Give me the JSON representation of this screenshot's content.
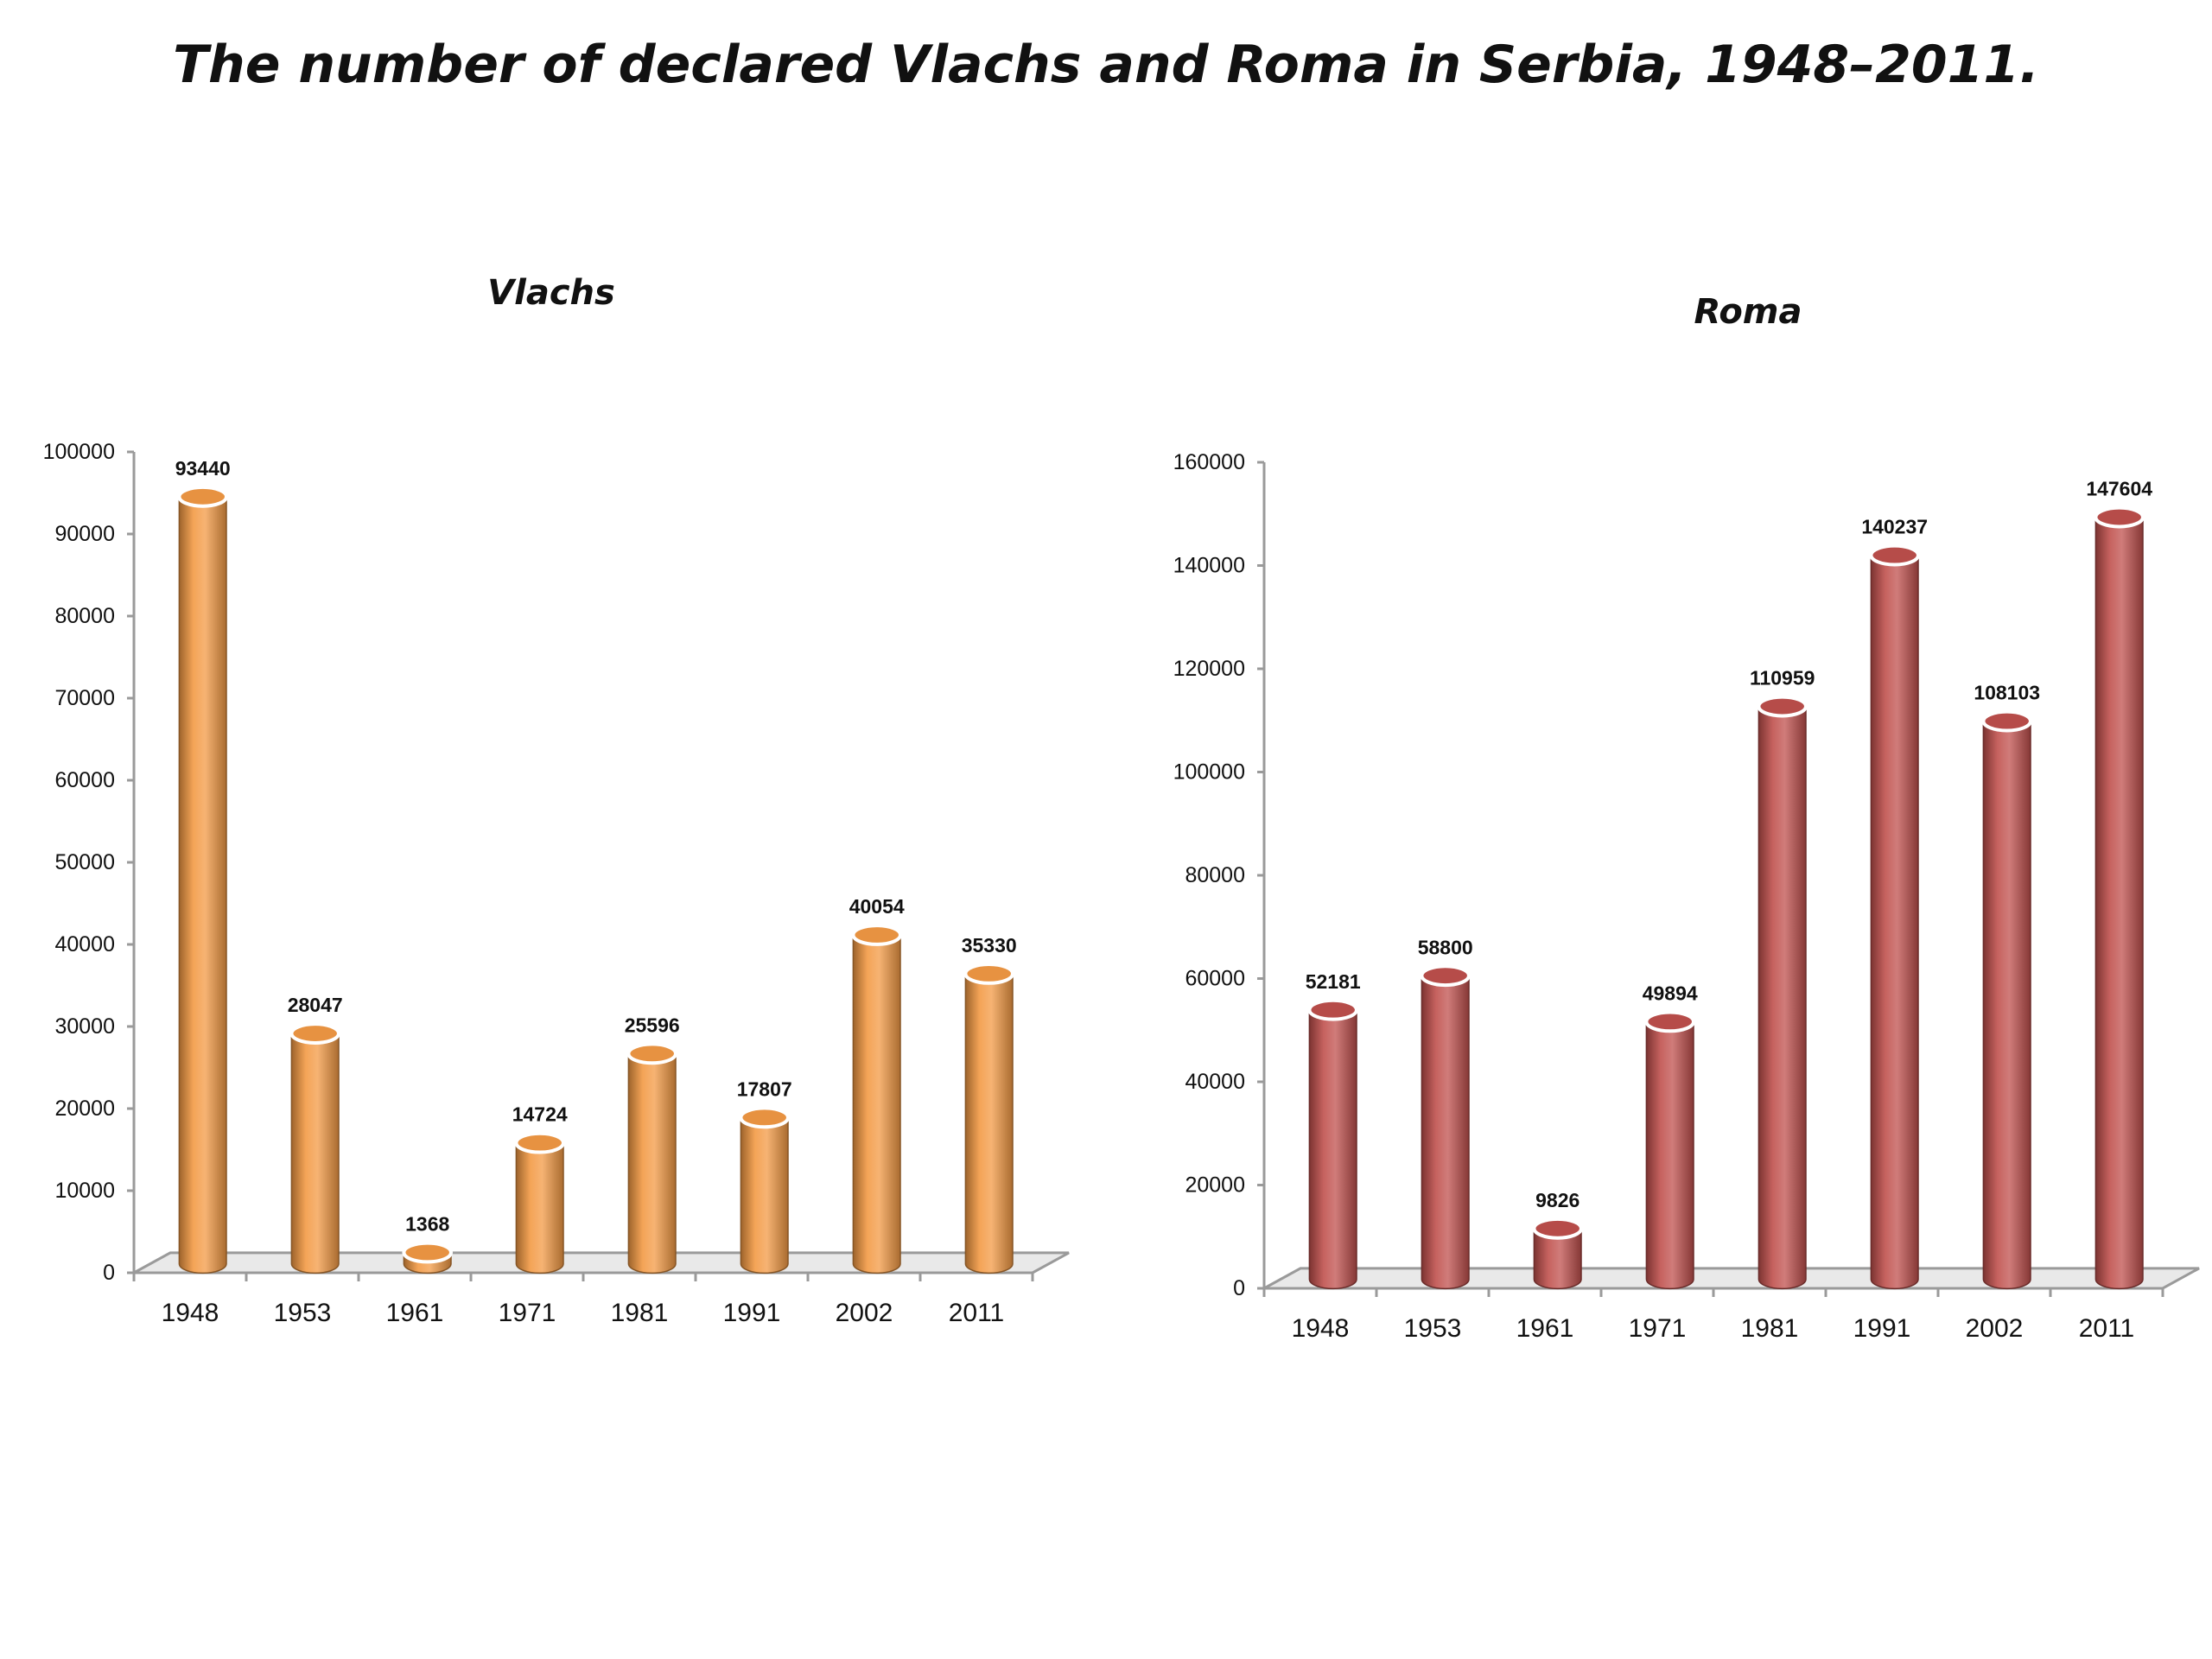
{
  "page": {
    "title": "The number of declared Vlachs and Roma in Serbia, 1948–2011."
  },
  "colors": {
    "vlachs_bar": "#f39a44",
    "roma_bar": "#c0504d",
    "axis": "#9a9a9a",
    "floor": "#e9e9e9"
  },
  "chart_data": [
    {
      "type": "bar",
      "title": "Vlachs",
      "categories": [
        "1948",
        "1953",
        "1961",
        "1971",
        "1981",
        "1991",
        "2002",
        "2011"
      ],
      "values": [
        93440,
        28047,
        1368,
        14724,
        25596,
        17807,
        40054,
        35330
      ],
      "data_labels": [
        "93440",
        "28047",
        "1368",
        "14724",
        "25596",
        "17807",
        "40054",
        "35330"
      ],
      "ylim": [
        0,
        100000
      ],
      "yticks": [
        0,
        10000,
        20000,
        30000,
        40000,
        50000,
        60000,
        70000,
        80000,
        90000,
        100000
      ],
      "ytick_labels": [
        "0",
        "10000",
        "20000",
        "30000",
        "40000",
        "50000",
        "60000",
        "70000",
        "80000",
        "90000",
        "100000"
      ],
      "xlabel": "",
      "ylabel": "",
      "grid": false,
      "style": "3d-cylinder",
      "color": "#f39a44"
    },
    {
      "type": "bar",
      "title": "Roma",
      "categories": [
        "1948",
        "1953",
        "1961",
        "1971",
        "1981",
        "1991",
        "2002",
        "2011"
      ],
      "values": [
        52181,
        58800,
        9826,
        49894,
        110959,
        140237,
        108103,
        147604
      ],
      "data_labels": [
        "52181",
        "58800",
        "9826",
        "49894",
        "110959",
        "140237",
        "108103",
        "147604"
      ],
      "ylim": [
        0,
        160000
      ],
      "yticks": [
        0,
        20000,
        40000,
        60000,
        80000,
        100000,
        120000,
        140000,
        160000
      ],
      "ytick_labels": [
        "0",
        "20000",
        "40000",
        "60000",
        "80000",
        "100000",
        "120000",
        "140000",
        "160000"
      ],
      "xlabel": "",
      "ylabel": "",
      "grid": false,
      "style": "3d-cylinder",
      "color": "#c0504d"
    }
  ]
}
